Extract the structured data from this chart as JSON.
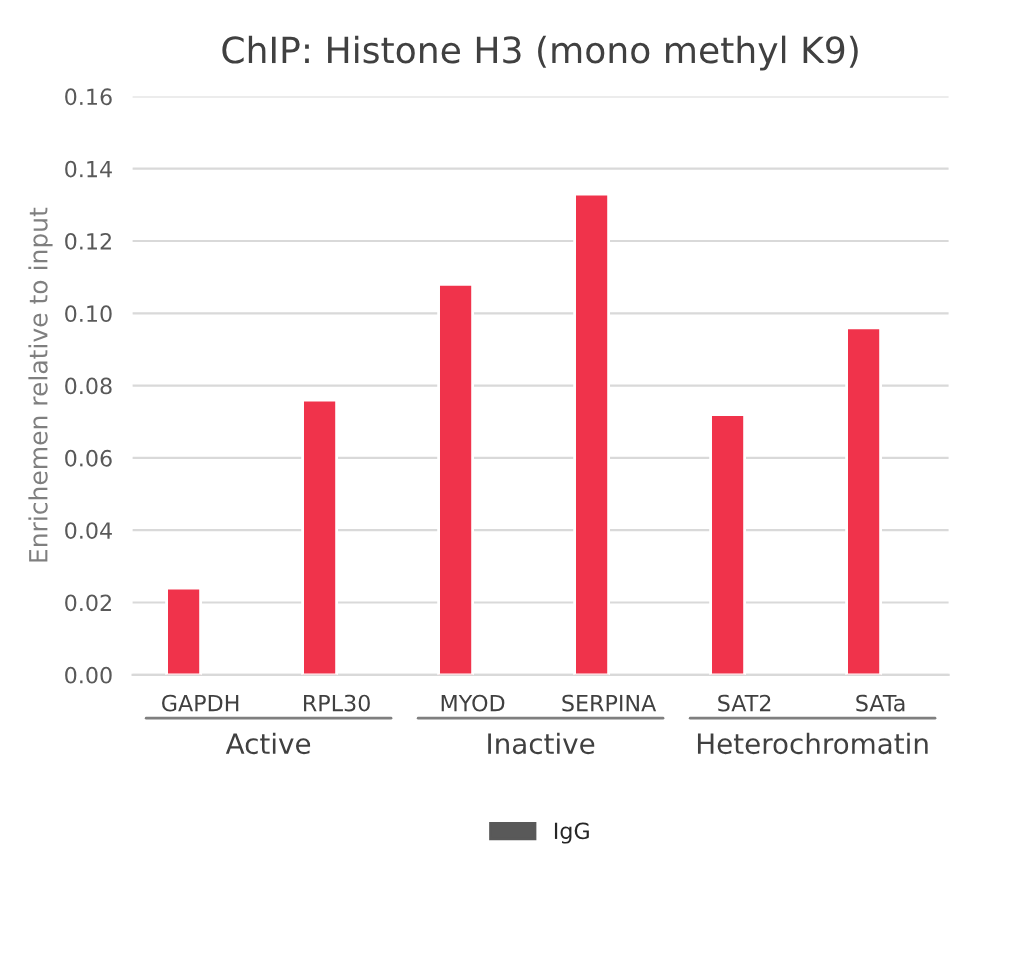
{
  "chart_data": {
    "type": "bar",
    "title": "ChIP: Histone H3 (mono methyl K9)",
    "ylabel": "Enrichemen relative to input",
    "categories": [
      "GAPDH",
      "RPL30",
      "MYOD",
      "SERPINA",
      "SAT2",
      "SATa"
    ],
    "series": [
      {
        "color": "#f0334b",
        "values": [
          0.024,
          0.076,
          0.108,
          0.133,
          0.072,
          0.096
        ]
      },
      {
        "name": "IgG",
        "color": "#595959",
        "values": [
          null,
          null,
          null,
          null,
          null,
          null
        ]
      }
    ],
    "annotations": [
      "Active",
      "Inactive",
      "Heterochromatin"
    ],
    "ylim": [
      0,
      0.16
    ],
    "yticks": [
      {
        "value": 0,
        "label": "0.00"
      },
      {
        "value": 0.02,
        "label": "0.02"
      },
      {
        "value": 0.04,
        "label": "0.04"
      },
      {
        "value": 0.06,
        "label": "0.06"
      },
      {
        "value": 0.08,
        "label": "0.08"
      },
      {
        "value": 0.1,
        "label": "0.10"
      },
      {
        "value": 0.12,
        "label": "0.12"
      },
      {
        "value": 0.14,
        "label": "0.14"
      },
      {
        "value": 0.16,
        "label": "0.16"
      }
    ],
    "grid": "y",
    "legend": "bottom"
  }
}
